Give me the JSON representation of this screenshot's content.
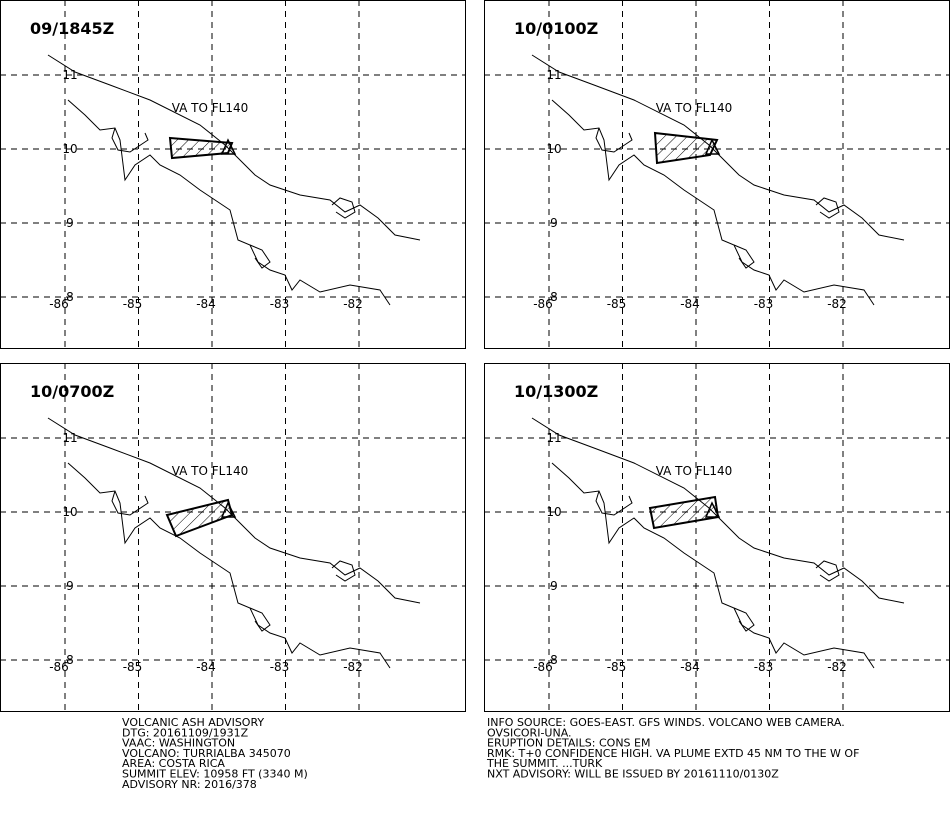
{
  "panels": [
    {
      "time": "09/1845Z",
      "label": "VA TO FL140"
    },
    {
      "time": "10/0100Z",
      "label": "VA TO FL140"
    },
    {
      "time": "10/0700Z",
      "label": "VA TO FL140"
    },
    {
      "time": "10/1300Z",
      "label": "VA TO FL140"
    }
  ],
  "grid": {
    "lon": [
      -86,
      -85,
      -84,
      -83,
      -82
    ],
    "lat": [
      11,
      10,
      9,
      8
    ]
  },
  "advisory_left": [
    "VOLCANIC ASH ADVISORY",
    "DTG: 20161109/1931Z",
    "VAAC: WASHINGTON",
    "VOLCANO: TURRIALBA 345070",
    "AREA: COSTA RICA",
    "SUMMIT ELEV: 10958 FT (3340 M)",
    "ADVISORY NR: 2016/378"
  ],
  "advisory_right": [
    "INFO SOURCE: GOES-EAST. GFS WINDS. VOLCANO WEB CAMERA.",
    "OVSICORI-UNA.",
    "ERUPTION DETAILS: CONS EM",
    "RMK: T+0 CONFIDENCE HIGH. VA PLUME EXTD 45 NM TO THE W OF",
    "THE SUMMIT. ...TURK",
    "NXT ADVISORY: WILL BE ISSUED BY 20161110/0130Z"
  ]
}
